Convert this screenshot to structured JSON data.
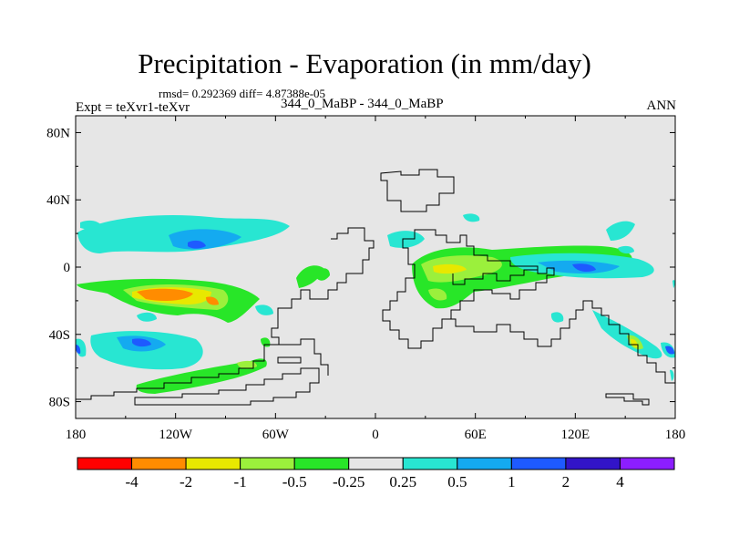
{
  "title": "Precipitation - Evaporation (in mm/day)",
  "stats": "rmsd= 0.292369  diff= 4.87388e-05",
  "expt": "Expt = teXvr1-teXvr",
  "case": "344_0_MaBP - 344_0_MaBP",
  "season": "ANN",
  "chart_data": {
    "type": "heatmap",
    "x_ticks": [
      "180",
      "120W",
      "60W",
      "0",
      "60E",
      "120E",
      "180"
    ],
    "y_ticks": [
      "80N",
      "40N",
      "0",
      "40S",
      "80S"
    ],
    "colorbar": {
      "labels": [
        "-4",
        "-2",
        "-1",
        "-0.5",
        "-0.25",
        "0.25",
        "0.5",
        "1",
        "2",
        "4"
      ],
      "colors": [
        "#ff0000",
        "#ff8c00",
        "#e8e800",
        "#9bf03c",
        "#28e628",
        "#e6e6e6",
        "#28e6d2",
        "#14aaf0",
        "#1e5aff",
        "#3214c8",
        "#8c1eff"
      ]
    },
    "background_color": "#e6e6e6"
  }
}
